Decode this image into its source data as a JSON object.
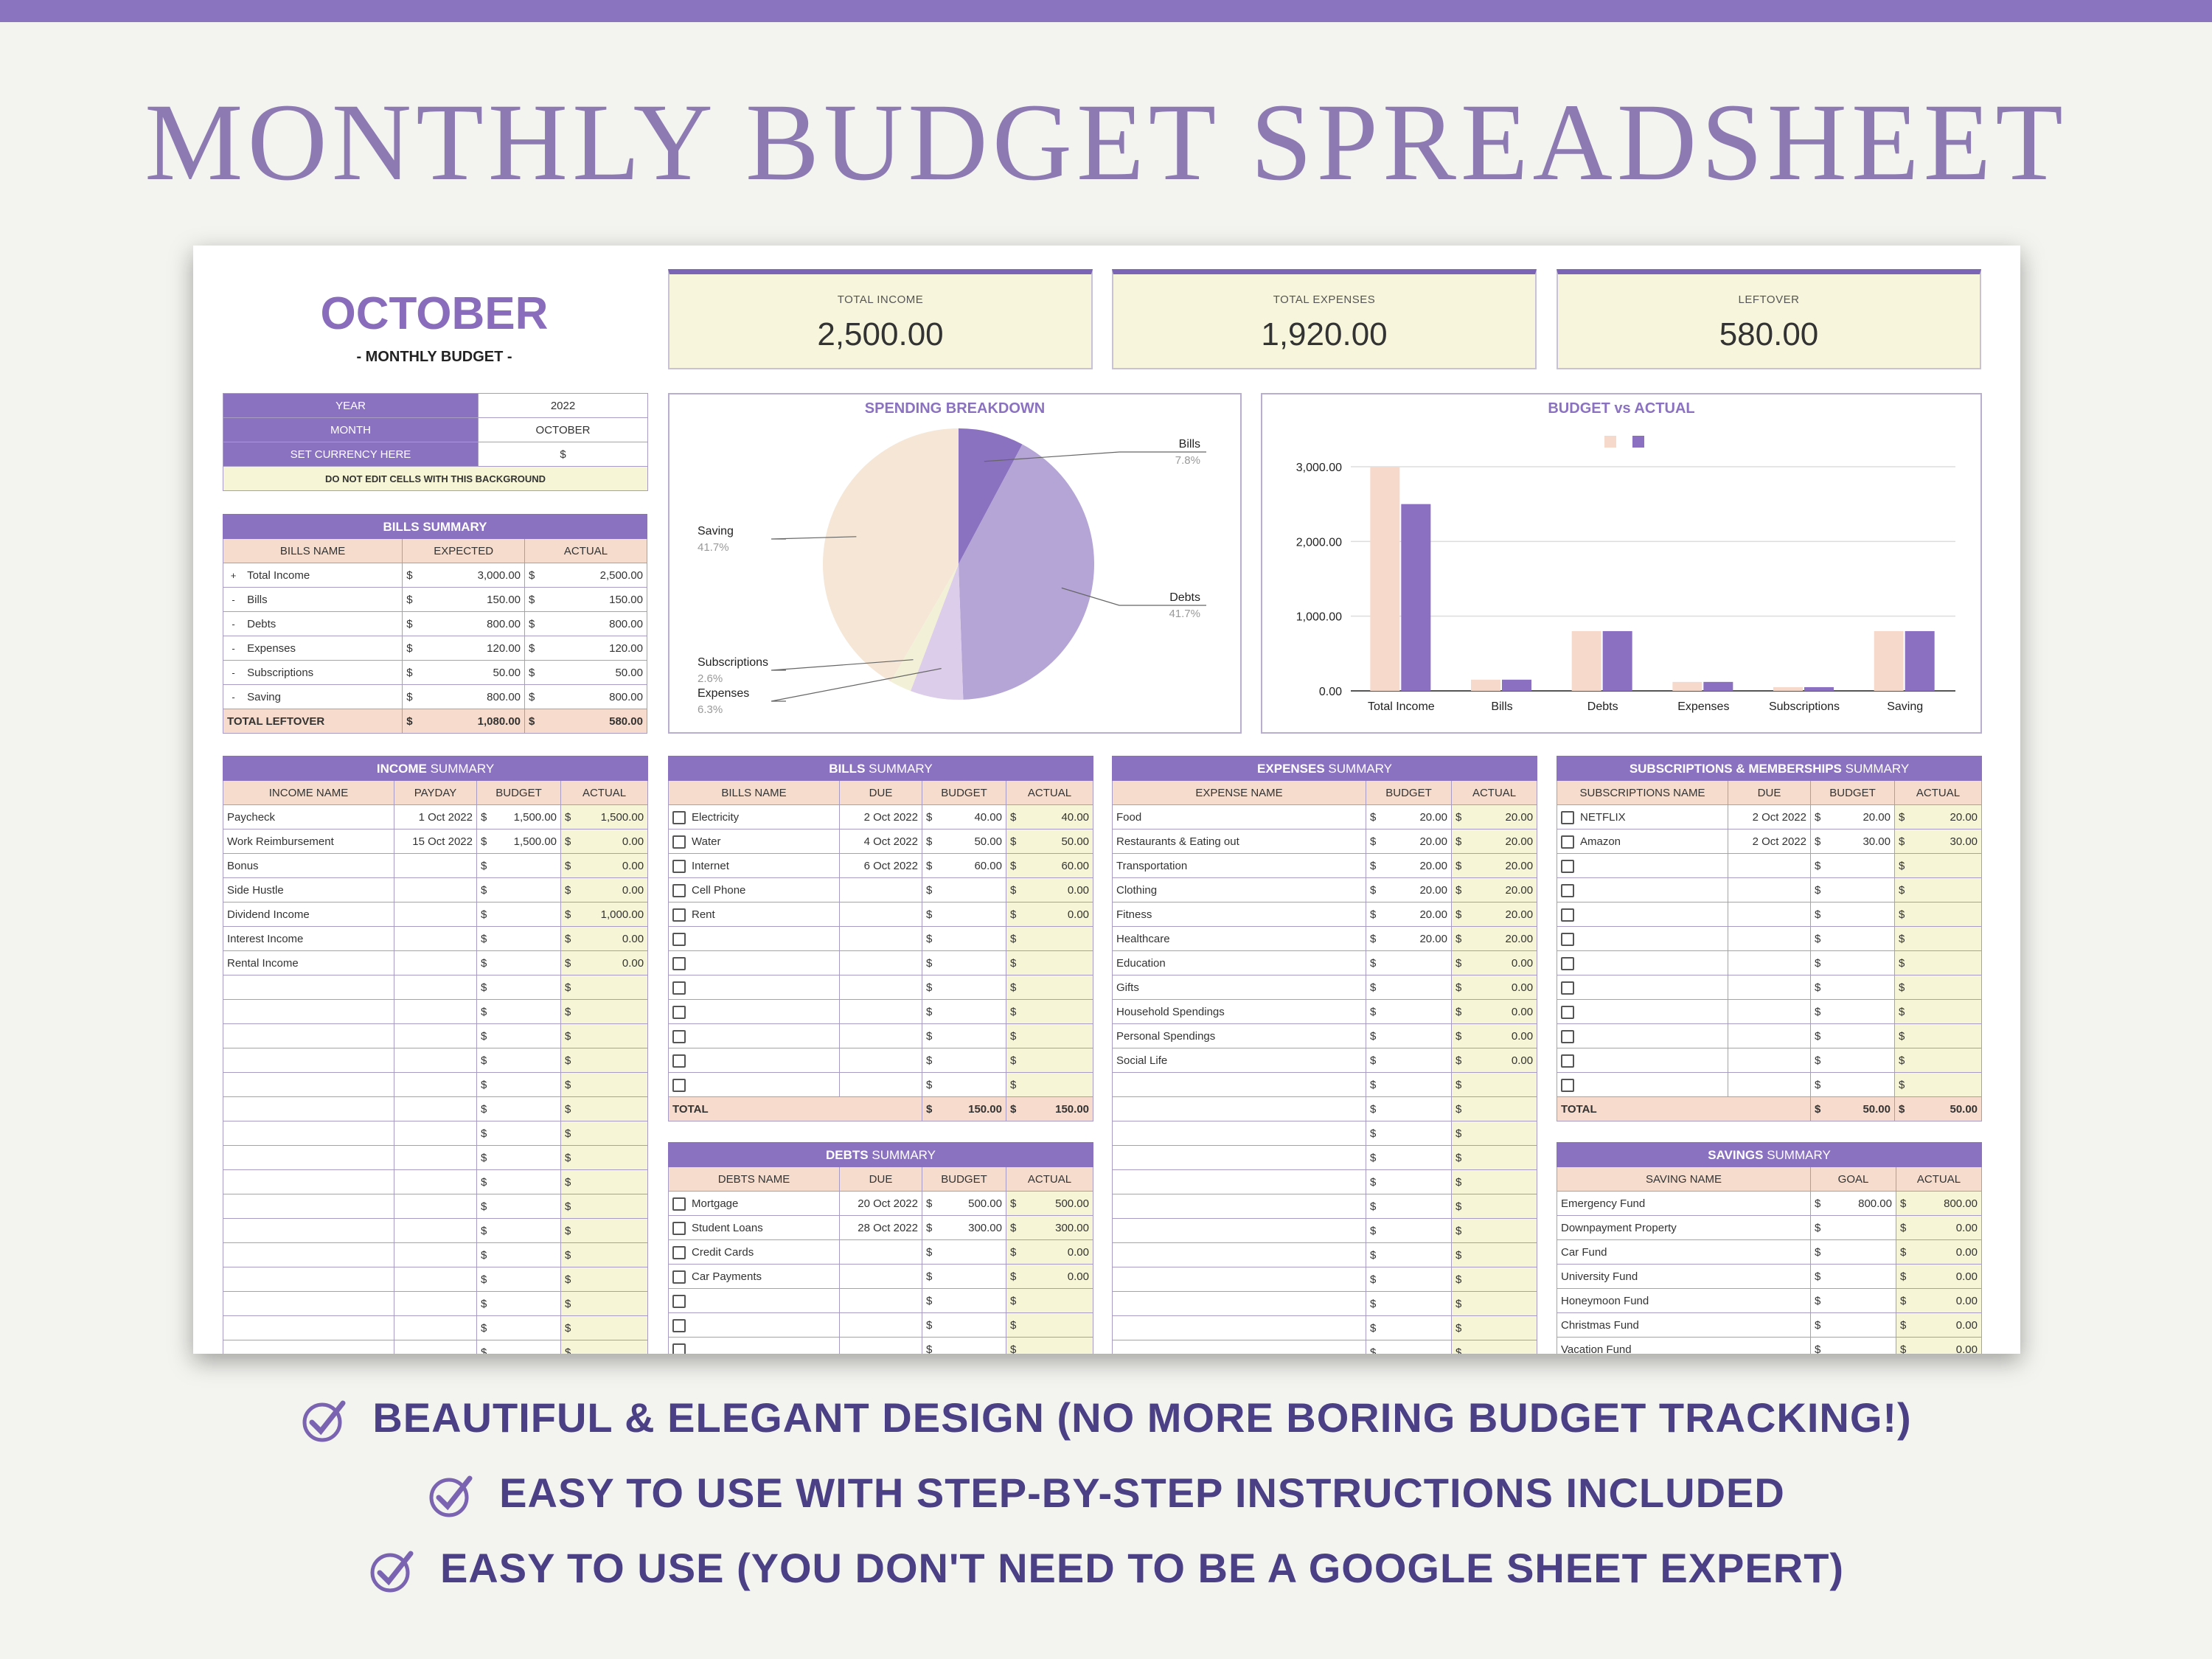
{
  "hero": "MONTHLY BUDGET SPREADSHEET",
  "header": {
    "month": "OCTOBER",
    "subtitle": "- MONTHLY BUDGET -"
  },
  "cards": [
    {
      "label": "TOTAL INCOME",
      "value": "2,500.00"
    },
    {
      "label": "TOTAL EXPENSES",
      "value": "1,920.00"
    },
    {
      "label": "LEFTOVER",
      "value": "580.00"
    }
  ],
  "settings": {
    "rows": [
      {
        "label": "YEAR",
        "value": "2022"
      },
      {
        "label": "MONTH",
        "value": "OCTOBER"
      },
      {
        "label": "SET CURRENCY HERE",
        "value": "$"
      }
    ],
    "note": "DO NOT EDIT CELLS WITH THIS BACKGROUND"
  },
  "bills_overview": {
    "title": "BILLS SUMMARY",
    "headers": [
      "BILLS NAME",
      "EXPECTED",
      "ACTUAL"
    ],
    "rows": [
      {
        "sign": "+",
        "name": "Total Income",
        "cur": "$",
        "expected": "3,000.00",
        "cur2": "$",
        "actual": "2,500.00"
      },
      {
        "sign": "-",
        "name": "Bills",
        "cur": "$",
        "expected": "150.00",
        "cur2": "$",
        "actual": "150.00"
      },
      {
        "sign": "-",
        "name": "Debts",
        "cur": "$",
        "expected": "800.00",
        "cur2": "$",
        "actual": "800.00"
      },
      {
        "sign": "-",
        "name": "Expenses",
        "cur": "$",
        "expected": "120.00",
        "cur2": "$",
        "actual": "120.00"
      },
      {
        "sign": "-",
        "name": "Subscriptions",
        "cur": "$",
        "expected": "50.00",
        "cur2": "$",
        "actual": "50.00"
      },
      {
        "sign": "-",
        "name": "Saving",
        "cur": "$",
        "expected": "800.00",
        "cur2": "$",
        "actual": "800.00"
      }
    ],
    "total": {
      "label": "TOTAL LEFTOVER",
      "cur": "$",
      "expected": "1,080.00",
      "cur2": "$",
      "actual": "580.00"
    }
  },
  "pie_chart": {
    "title": "SPENDING BREAKDOWN",
    "labels": [
      {
        "name": "Bills",
        "pct": "7.8%"
      },
      {
        "name": "Debts",
        "pct": "41.7%"
      },
      {
        "name": "Saving",
        "pct": "41.7%"
      },
      {
        "name": "Subscriptions",
        "pct": "2.6%"
      },
      {
        "name": "Expenses",
        "pct": "6.3%"
      }
    ]
  },
  "bar_chart": {
    "title": "BUDGET vs ACTUAL"
  },
  "chart_data": [
    {
      "type": "pie",
      "title": "SPENDING BREAKDOWN",
      "slices": [
        {
          "label": "Bills",
          "value": 7.8,
          "color": "#8b72c1"
        },
        {
          "label": "Debts",
          "value": 41.7,
          "color": "#b4a5d6"
        },
        {
          "label": "Expenses",
          "value": 6.3,
          "color": "#dccdea"
        },
        {
          "label": "Subscriptions",
          "value": 2.6,
          "color": "#f2f0d6"
        },
        {
          "label": "Saving",
          "value": 41.7,
          "color": "#f5e6d6"
        }
      ]
    },
    {
      "type": "bar",
      "title": "BUDGET vs ACTUAL",
      "categories": [
        "Total Income",
        "Bills",
        "Debts",
        "Expenses",
        "Subscriptions",
        "Saving"
      ],
      "series": [
        {
          "values": [
            3000,
            150,
            800,
            120,
            50,
            800
          ],
          "color": "#f6d9cb"
        },
        {
          "values": [
            2500,
            150,
            800,
            120,
            50,
            800
          ],
          "color": "#8b6fc0"
        }
      ],
      "yticks": [
        "3,000.00",
        "2,000.00",
        "1,000.00",
        "0.00"
      ],
      "ylim": [
        0,
        3000
      ]
    }
  ],
  "income": {
    "title_bold": "INCOME",
    "title_rest": " SUMMARY",
    "headers": [
      "INCOME NAME",
      "PAYDAY",
      "BUDGET",
      "ACTUAL"
    ],
    "rows": [
      {
        "name": "Paycheck",
        "day": "1 Oct 2022",
        "budget": "1,500.00",
        "actual": "1,500.00"
      },
      {
        "name": "Work Reimbursement",
        "day": "15 Oct 2022",
        "budget": "1,500.00",
        "actual": "0.00"
      },
      {
        "name": "Bonus",
        "day": "",
        "budget": "",
        "actual": "0.00"
      },
      {
        "name": "Side Hustle",
        "day": "",
        "budget": "",
        "actual": "0.00"
      },
      {
        "name": "Dividend Income",
        "day": "",
        "budget": "",
        "actual": "1,000.00"
      },
      {
        "name": "Interest Income",
        "day": "",
        "budget": "",
        "actual": "0.00"
      },
      {
        "name": "Rental Income",
        "day": "",
        "budget": "",
        "actual": "0.00"
      }
    ],
    "blank_rows": 17,
    "cur": "$"
  },
  "bills": {
    "title_bold": "BILLS",
    "title_rest": " SUMMARY",
    "headers": [
      "BILLS NAME",
      "DUE",
      "BUDGET",
      "ACTUAL"
    ],
    "rows": [
      {
        "name": "Electricity",
        "day": "2 Oct 2022",
        "budget": "40.00",
        "actual": "40.00"
      },
      {
        "name": "Water",
        "day": "4 Oct 2022",
        "budget": "50.00",
        "actual": "50.00"
      },
      {
        "name": "Internet",
        "day": "6 Oct 2022",
        "budget": "60.00",
        "actual": "60.00"
      },
      {
        "name": "Cell Phone",
        "day": "",
        "budget": "",
        "actual": "0.00"
      },
      {
        "name": "Rent",
        "day": "",
        "budget": "",
        "actual": "0.00"
      }
    ],
    "blank_rows": 7,
    "total": {
      "label": "TOTAL",
      "budget": "150.00",
      "actual": "150.00"
    },
    "cur": "$"
  },
  "debts": {
    "title_bold": "DEBTS",
    "title_rest": " SUMMARY",
    "headers": [
      "DEBTS NAME",
      "DUE",
      "BUDGET",
      "ACTUAL"
    ],
    "rows": [
      {
        "name": "Mortgage",
        "day": "20 Oct 2022",
        "budget": "500.00",
        "actual": "500.00"
      },
      {
        "name": "Student Loans",
        "day": "28 Oct 2022",
        "budget": "300.00",
        "actual": "300.00"
      },
      {
        "name": "Credit Cards",
        "day": "",
        "budget": "",
        "actual": "0.00"
      },
      {
        "name": "Car Payments",
        "day": "",
        "budget": "",
        "actual": "0.00"
      }
    ],
    "blank_rows": 3,
    "cur": "$"
  },
  "expenses": {
    "title_bold": "EXPENSES",
    "title_rest": " SUMMARY",
    "headers": [
      "EXPENSE NAME",
      "BUDGET",
      "ACTUAL"
    ],
    "rows": [
      {
        "name": "Food",
        "budget": "20.00",
        "actual": "20.00"
      },
      {
        "name": "Restaurants & Eating out",
        "budget": "20.00",
        "actual": "20.00"
      },
      {
        "name": "Transportation",
        "budget": "20.00",
        "actual": "20.00"
      },
      {
        "name": "Clothing",
        "budget": "20.00",
        "actual": "20.00"
      },
      {
        "name": "Fitness",
        "budget": "20.00",
        "actual": "20.00"
      },
      {
        "name": "Healthcare",
        "budget": "20.00",
        "actual": "20.00"
      },
      {
        "name": "Education",
        "budget": "",
        "actual": "0.00"
      },
      {
        "name": "Gifts",
        "budget": "",
        "actual": "0.00"
      },
      {
        "name": "Household Spendings",
        "budget": "",
        "actual": "0.00"
      },
      {
        "name": "Personal Spendings",
        "budget": "",
        "actual": "0.00"
      },
      {
        "name": "Social Life",
        "budget": "",
        "actual": "0.00"
      }
    ],
    "blank_rows": 13,
    "cur": "$"
  },
  "subscriptions": {
    "title_bold": "SUBSCRIPTIONS & MEMBERSHIPS",
    "title_rest": " SUMMARY",
    "headers": [
      "SUBSCRIPTIONS NAME",
      "DUE",
      "BUDGET",
      "ACTUAL"
    ],
    "rows": [
      {
        "name": "NETFLIX",
        "day": "2 Oct 2022",
        "budget": "20.00",
        "actual": "20.00"
      },
      {
        "name": "Amazon",
        "day": "2 Oct 2022",
        "budget": "30.00",
        "actual": "30.00"
      }
    ],
    "blank_rows": 10,
    "total": {
      "label": "TOTAL",
      "budget": "50.00",
      "actual": "50.00"
    },
    "cur": "$"
  },
  "savings": {
    "title_bold": "SAVINGS",
    "title_rest": " SUMMARY",
    "headers": [
      "SAVING NAME",
      "GOAL",
      "ACTUAL"
    ],
    "rows": [
      {
        "name": "Emergency Fund",
        "goal": "800.00",
        "actual": "800.00"
      },
      {
        "name": "Downpayment Property",
        "goal": "",
        "actual": "0.00"
      },
      {
        "name": "Car Fund",
        "goal": "",
        "actual": "0.00"
      },
      {
        "name": "University Fund",
        "goal": "",
        "actual": "0.00"
      },
      {
        "name": "Honeymoon Fund",
        "goal": "",
        "actual": "0.00"
      },
      {
        "name": "Christmas Fund",
        "goal": "",
        "actual": "0.00"
      },
      {
        "name": "Vacation Fund",
        "goal": "",
        "actual": "0.00"
      }
    ],
    "cur": "$"
  },
  "features": [
    "BEAUTIFUL & ELEGANT DESIGN (NO MORE BORING BUDGET TRACKING!)",
    "EASY TO USE WITH STEP-BY-STEP INSTRUCTIONS INCLUDED",
    "EASY TO USE (YOU DON'T NEED TO BE A GOOGLE SHEET EXPERT)"
  ]
}
